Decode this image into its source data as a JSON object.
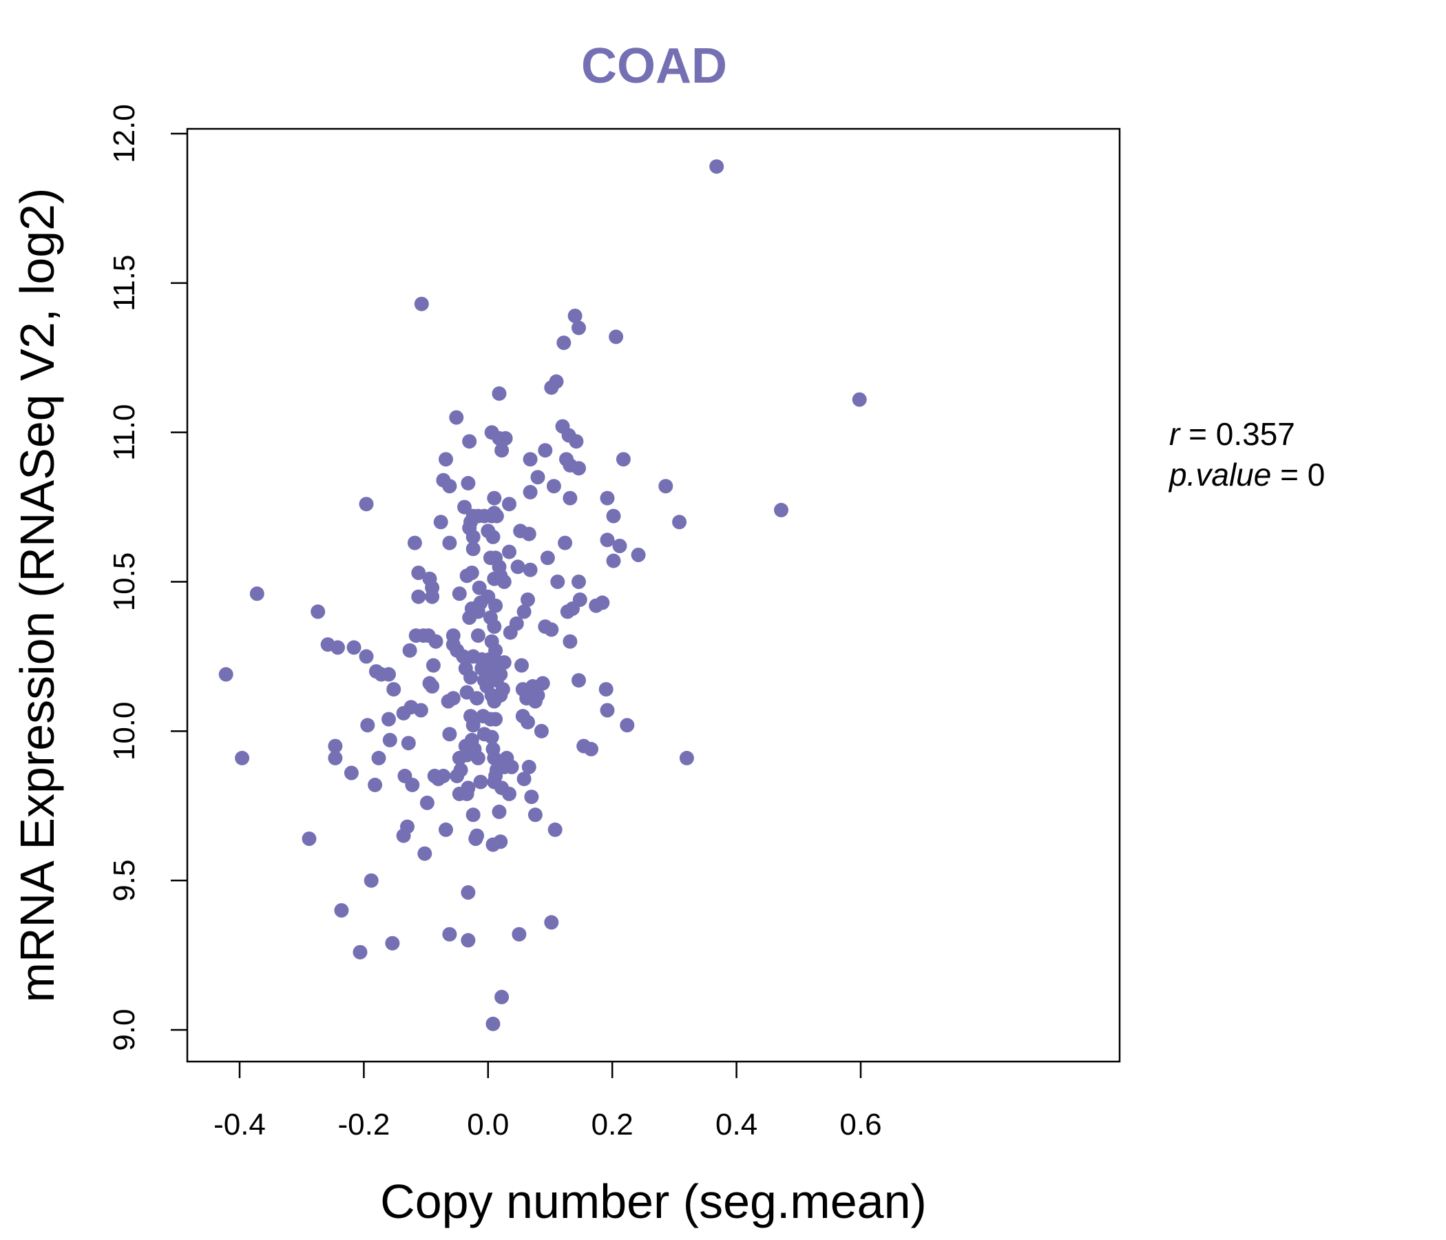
{
  "chart_data": {
    "type": "scatter",
    "title": "COAD",
    "xlabel": "Copy number (seg.mean)",
    "ylabel": "mRNA Expression (RNASeq V2, log2)",
    "xlim": [
      -0.4,
      0.6
    ],
    "ylim": [
      9.0,
      12.0
    ],
    "xticks": [
      "-0.4",
      "-0.2",
      "0.0",
      "0.2",
      "0.4",
      "0.6"
    ],
    "yticks": [
      "9.0",
      "9.5",
      "10.0",
      "10.5",
      "11.0",
      "11.5",
      "12.0"
    ],
    "grid": false,
    "legend": "none",
    "color": "#7570B3",
    "annotation": {
      "r_label": "r",
      "r_value": "0.357",
      "p_label": "p.value",
      "p_value": "0"
    },
    "series": [
      {
        "points": [
          [
            0.368,
            11.89
          ],
          [
            -0.107,
            11.43
          ],
          [
            0.14,
            11.39
          ],
          [
            0.146,
            11.35
          ],
          [
            0.206,
            11.32
          ],
          [
            0.122,
            11.3
          ],
          [
            0.11,
            11.17
          ],
          [
            0.102,
            11.15
          ],
          [
            0.018,
            11.13
          ],
          [
            0.598,
            11.11
          ],
          [
            -0.051,
            11.05
          ],
          [
            0.12,
            11.02
          ],
          [
            0.006,
            11.0
          ],
          [
            0.13,
            10.99
          ],
          [
            0.018,
            10.98
          ],
          [
            0.028,
            10.98
          ],
          [
            -0.03,
            10.97
          ],
          [
            0.142,
            10.97
          ],
          [
            0.022,
            10.94
          ],
          [
            0.092,
            10.94
          ],
          [
            -0.068,
            10.91
          ],
          [
            0.068,
            10.91
          ],
          [
            0.126,
            10.91
          ],
          [
            0.218,
            10.91
          ],
          [
            0.132,
            10.89
          ],
          [
            0.146,
            10.88
          ],
          [
            0.08,
            10.85
          ],
          [
            -0.072,
            10.84
          ],
          [
            -0.062,
            10.82
          ],
          [
            -0.032,
            10.83
          ],
          [
            0.106,
            10.82
          ],
          [
            0.286,
            10.82
          ],
          [
            0.068,
            10.8
          ],
          [
            -0.196,
            10.76
          ],
          [
            0.01,
            10.78
          ],
          [
            0.192,
            10.78
          ],
          [
            0.132,
            10.78
          ],
          [
            0.034,
            10.76
          ],
          [
            -0.038,
            10.75
          ],
          [
            -0.024,
            10.72
          ],
          [
            -0.016,
            10.72
          ],
          [
            -0.006,
            10.72
          ],
          [
            0.006,
            10.72
          ],
          [
            0.01,
            10.73
          ],
          [
            0.014,
            10.72
          ],
          [
            0.202,
            10.72
          ],
          [
            0.472,
            10.74
          ],
          [
            -0.028,
            10.7
          ],
          [
            -0.076,
            10.7
          ],
          [
            0.308,
            10.7
          ],
          [
            -0.03,
            10.68
          ],
          [
            0.0,
            10.67
          ],
          [
            0.052,
            10.67
          ],
          [
            0.066,
            10.66
          ],
          [
            0.008,
            10.65
          ],
          [
            -0.024,
            10.65
          ],
          [
            -0.118,
            10.63
          ],
          [
            -0.062,
            10.63
          ],
          [
            0.124,
            10.63
          ],
          [
            0.192,
            10.64
          ],
          [
            0.212,
            10.62
          ],
          [
            0.034,
            10.6
          ],
          [
            -0.024,
            10.61
          ],
          [
            0.242,
            10.59
          ],
          [
            0.004,
            10.58
          ],
          [
            0.012,
            10.58
          ],
          [
            0.096,
            10.58
          ],
          [
            0.202,
            10.57
          ],
          [
            0.048,
            10.55
          ],
          [
            0.018,
            10.55
          ],
          [
            -0.026,
            10.53
          ],
          [
            -0.112,
            10.53
          ],
          [
            -0.034,
            10.52
          ],
          [
            0.02,
            10.52
          ],
          [
            0.068,
            10.54
          ],
          [
            -0.094,
            10.51
          ],
          [
            0.01,
            10.51
          ],
          [
            0.026,
            10.5
          ],
          [
            0.112,
            10.5
          ],
          [
            0.146,
            10.5
          ],
          [
            -0.09,
            10.48
          ],
          [
            -0.014,
            10.48
          ],
          [
            -0.046,
            10.46
          ],
          [
            0.0,
            10.45
          ],
          [
            -0.112,
            10.45
          ],
          [
            -0.09,
            10.45
          ],
          [
            0.064,
            10.44
          ],
          [
            0.148,
            10.44
          ],
          [
            0.184,
            10.43
          ],
          [
            -0.372,
            10.46
          ],
          [
            -0.012,
            10.43
          ],
          [
            0.012,
            10.42
          ],
          [
            0.174,
            10.42
          ],
          [
            0.136,
            10.41
          ],
          [
            -0.026,
            10.41
          ],
          [
            -0.274,
            10.4
          ],
          [
            0.058,
            10.4
          ],
          [
            -0.016,
            10.4
          ],
          [
            0.128,
            10.4
          ],
          [
            -0.03,
            10.38
          ],
          [
            0.004,
            10.38
          ],
          [
            0.046,
            10.36
          ],
          [
            0.01,
            10.35
          ],
          [
            0.092,
            10.35
          ],
          [
            0.102,
            10.34
          ],
          [
            0.036,
            10.33
          ],
          [
            -0.116,
            10.32
          ],
          [
            -0.104,
            10.32
          ],
          [
            -0.096,
            10.32
          ],
          [
            -0.056,
            10.32
          ],
          [
            -0.016,
            10.32
          ],
          [
            0.006,
            10.3
          ],
          [
            -0.084,
            10.3
          ],
          [
            -0.258,
            10.29
          ],
          [
            -0.056,
            10.29
          ],
          [
            0.132,
            10.3
          ],
          [
            -0.242,
            10.28
          ],
          [
            -0.216,
            10.28
          ],
          [
            -0.126,
            10.27
          ],
          [
            -0.05,
            10.27
          ],
          [
            0.012,
            10.27
          ],
          [
            -0.196,
            10.25
          ],
          [
            -0.04,
            10.25
          ],
          [
            -0.024,
            10.25
          ],
          [
            -0.01,
            10.24
          ],
          [
            0.002,
            10.24
          ],
          [
            0.016,
            10.23
          ],
          [
            0.026,
            10.23
          ],
          [
            -0.088,
            10.22
          ],
          [
            0.054,
            10.22
          ],
          [
            -0.036,
            10.21
          ],
          [
            -0.01,
            10.21
          ],
          [
            0.002,
            10.2
          ],
          [
            -0.18,
            10.2
          ],
          [
            -0.172,
            10.19
          ],
          [
            -0.16,
            10.19
          ],
          [
            -0.422,
            10.19
          ],
          [
            0.02,
            10.19
          ],
          [
            -0.028,
            10.18
          ],
          [
            -0.006,
            10.17
          ],
          [
            0.014,
            10.17
          ],
          [
            0.146,
            10.17
          ],
          [
            -0.094,
            10.16
          ],
          [
            -0.09,
            10.15
          ],
          [
            0.088,
            10.16
          ],
          [
            -0.002,
            10.15
          ],
          [
            -0.152,
            10.14
          ],
          [
            0.024,
            10.14
          ],
          [
            0.056,
            10.14
          ],
          [
            0.072,
            10.15
          ],
          [
            0.19,
            10.14
          ],
          [
            -0.034,
            10.13
          ],
          [
            0.006,
            10.12
          ],
          [
            0.02,
            10.12
          ],
          [
            0.08,
            10.12
          ],
          [
            -0.064,
            10.1
          ],
          [
            -0.056,
            10.11
          ],
          [
            -0.018,
            10.11
          ],
          [
            0.01,
            10.1
          ],
          [
            0.062,
            10.11
          ],
          [
            0.076,
            10.1
          ],
          [
            -0.124,
            10.08
          ],
          [
            -0.108,
            10.07
          ],
          [
            0.192,
            10.07
          ],
          [
            -0.136,
            10.06
          ],
          [
            -0.028,
            10.05
          ],
          [
            -0.008,
            10.05
          ],
          [
            0.004,
            10.04
          ],
          [
            0.056,
            10.05
          ],
          [
            -0.194,
            10.02
          ],
          [
            -0.16,
            10.04
          ],
          [
            0.012,
            10.04
          ],
          [
            0.064,
            10.03
          ],
          [
            0.224,
            10.02
          ],
          [
            -0.024,
            10.02
          ],
          [
            0.086,
            10.0
          ],
          [
            -0.062,
            9.99
          ],
          [
            -0.006,
            9.99
          ],
          [
            0.006,
            9.98
          ],
          [
            -0.158,
            9.97
          ],
          [
            -0.128,
            9.96
          ],
          [
            -0.026,
            9.97
          ],
          [
            0.154,
            9.95
          ],
          [
            0.166,
            9.94
          ],
          [
            -0.246,
            9.95
          ],
          [
            -0.036,
            9.95
          ],
          [
            -0.022,
            9.94
          ],
          [
            0.008,
            9.94
          ],
          [
            -0.396,
            9.91
          ],
          [
            -0.246,
            9.91
          ],
          [
            -0.176,
            9.91
          ],
          [
            -0.046,
            9.91
          ],
          [
            -0.034,
            9.92
          ],
          [
            -0.016,
            9.91
          ],
          [
            0.01,
            9.91
          ],
          [
            0.03,
            9.91
          ],
          [
            0.32,
            9.91
          ],
          [
            0.038,
            9.88
          ],
          [
            0.066,
            9.88
          ],
          [
            -0.044,
            9.87
          ],
          [
            -0.22,
            9.86
          ],
          [
            0.014,
            9.87
          ],
          [
            0.026,
            9.88
          ],
          [
            -0.086,
            9.85
          ],
          [
            -0.072,
            9.85
          ],
          [
            -0.05,
            9.85
          ],
          [
            -0.134,
            9.85
          ],
          [
            0.012,
            9.85
          ],
          [
            0.058,
            9.84
          ],
          [
            -0.08,
            9.84
          ],
          [
            -0.012,
            9.83
          ],
          [
            0.01,
            9.83
          ],
          [
            -0.182,
            9.82
          ],
          [
            -0.122,
            9.82
          ],
          [
            0.022,
            9.81
          ],
          [
            -0.032,
            9.81
          ],
          [
            0.034,
            9.79
          ],
          [
            -0.046,
            9.79
          ],
          [
            -0.034,
            9.79
          ],
          [
            0.07,
            9.78
          ],
          [
            -0.098,
            9.76
          ],
          [
            0.018,
            9.73
          ],
          [
            -0.024,
            9.72
          ],
          [
            0.076,
            9.72
          ],
          [
            -0.13,
            9.68
          ],
          [
            0.108,
            9.67
          ],
          [
            -0.068,
            9.67
          ],
          [
            -0.018,
            9.65
          ],
          [
            -0.136,
            9.65
          ],
          [
            -0.02,
            9.64
          ],
          [
            -0.288,
            9.64
          ],
          [
            0.02,
            9.63
          ],
          [
            0.008,
            9.62
          ],
          [
            -0.102,
            9.59
          ],
          [
            -0.188,
            9.5
          ],
          [
            -0.032,
            9.46
          ],
          [
            -0.236,
            9.4
          ],
          [
            0.102,
            9.36
          ],
          [
            -0.062,
            9.32
          ],
          [
            0.05,
            9.32
          ],
          [
            -0.032,
            9.3
          ],
          [
            -0.154,
            9.29
          ],
          [
            -0.206,
            9.26
          ],
          [
            0.022,
            9.11
          ],
          [
            0.008,
            9.02
          ]
        ]
      }
    ]
  }
}
